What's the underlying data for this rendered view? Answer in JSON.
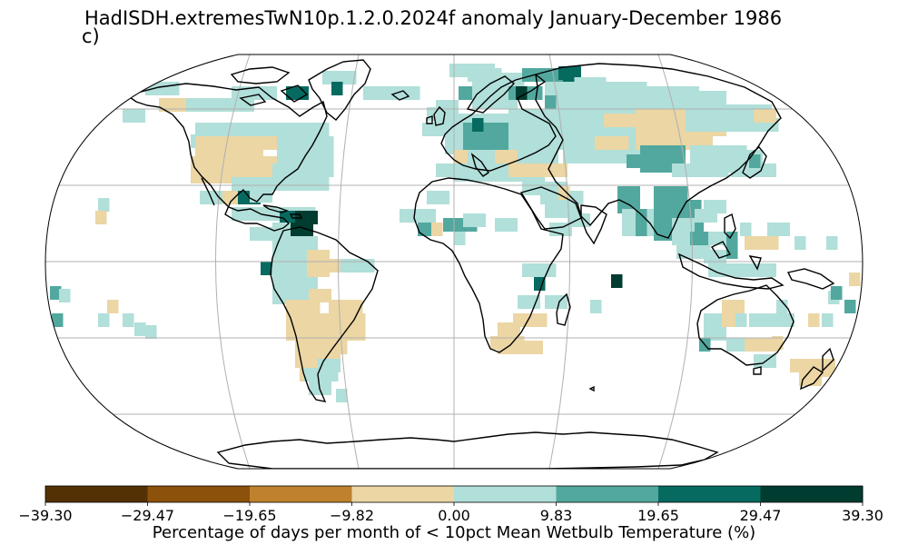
{
  "title": "HadISDH.extremesTwN10p.1.2.0.2024f anomaly January-December 1986",
  "panel_label": "c)",
  "colorbar": {
    "title": "Percentage of days per month of < 10pct Mean Wetbulb Temperature (%)",
    "tick_labels": [
      "−39.30",
      "−29.47",
      "−19.65",
      "−9.82",
      "0.00",
      "9.83",
      "19.65",
      "29.47",
      "39.30"
    ],
    "colors": [
      "#543005",
      "#8c510a",
      "#bf812d",
      "#ebd6a4",
      "#b1dfd9",
      "#52a89e",
      "#066a60",
      "#003c30"
    ]
  },
  "map": {
    "projection": "Robinson",
    "coastline_color": "#000000",
    "gridline_color": "#b0b0b0",
    "gridlines": true
  }
}
